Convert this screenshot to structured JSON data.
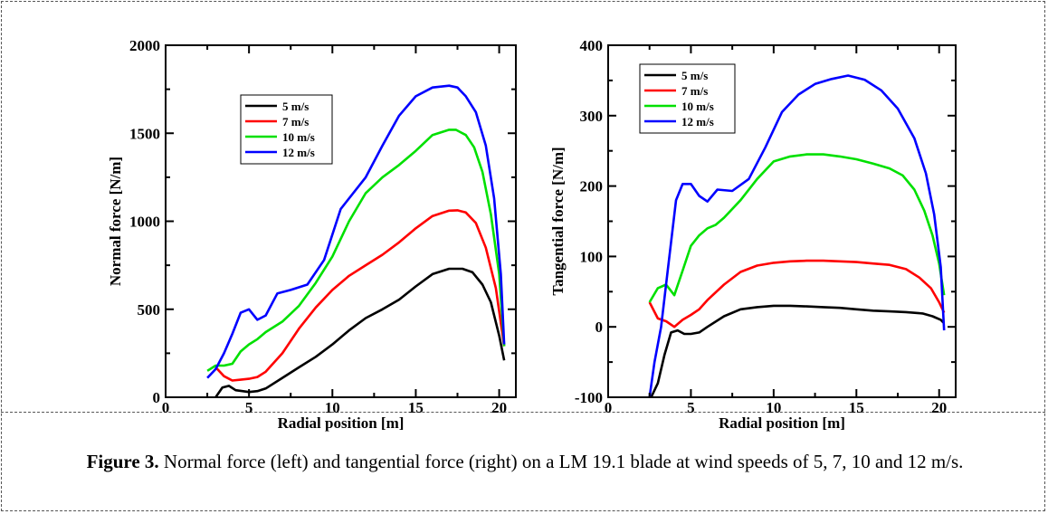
{
  "colors": {
    "s5": "#000000",
    "s7": "#ff0000",
    "s10": "#00e000",
    "s12": "#0000ff"
  },
  "caption": {
    "label": "Figure 3.",
    "text": " Normal force (left) and tangential force (right) on a LM 19.1 blade at wind speeds of 5, 7, 10 and 12 m/s."
  },
  "chart_data": [
    {
      "type": "line",
      "xlabel": "Radial position [m]",
      "ylabel": "Normal force [N/m]",
      "xlim": [
        0,
        21
      ],
      "ylim": [
        0,
        2000
      ],
      "xticks": [
        0,
        5,
        10,
        15,
        20
      ],
      "yticks": [
        0,
        500,
        1000,
        1500,
        2000
      ],
      "legend_position": "upper-left",
      "series": [
        {
          "name": "5 m/s",
          "color": "#000000",
          "points": [
            [
              3,
              0
            ],
            [
              3.4,
              55
            ],
            [
              3.8,
              65
            ],
            [
              4.2,
              40
            ],
            [
              4.6,
              35
            ],
            [
              5,
              30
            ],
            [
              5.5,
              35
            ],
            [
              6,
              50
            ],
            [
              7,
              110
            ],
            [
              8,
              170
            ],
            [
              9,
              230
            ],
            [
              10,
              300
            ],
            [
              11,
              380
            ],
            [
              12,
              450
            ],
            [
              13,
              500
            ],
            [
              14,
              555
            ],
            [
              15,
              630
            ],
            [
              16,
              700
            ],
            [
              17,
              730
            ],
            [
              17.8,
              730
            ],
            [
              18.4,
              710
            ],
            [
              19,
              640
            ],
            [
              19.5,
              540
            ],
            [
              20,
              350
            ],
            [
              20.3,
              210
            ]
          ]
        },
        {
          "name": "7 m/s",
          "color": "#ff0000",
          "points": [
            [
              3,
              170
            ],
            [
              3.5,
              120
            ],
            [
              4,
              95
            ],
            [
              4.5,
              100
            ],
            [
              5,
              105
            ],
            [
              5.5,
              115
            ],
            [
              6,
              145
            ],
            [
              7,
              250
            ],
            [
              8,
              390
            ],
            [
              9,
              510
            ],
            [
              10,
              610
            ],
            [
              11,
              690
            ],
            [
              12,
              750
            ],
            [
              13,
              810
            ],
            [
              14,
              880
            ],
            [
              15,
              960
            ],
            [
              16,
              1030
            ],
            [
              17,
              1060
            ],
            [
              17.5,
              1062
            ],
            [
              18,
              1050
            ],
            [
              18.6,
              990
            ],
            [
              19.2,
              850
            ],
            [
              19.8,
              620
            ],
            [
              20.3,
              290
            ]
          ]
        },
        {
          "name": "10 m/s",
          "color": "#00e000",
          "points": [
            [
              2.5,
              150
            ],
            [
              3,
              180
            ],
            [
              3.5,
              180
            ],
            [
              4,
              190
            ],
            [
              4.5,
              260
            ],
            [
              5,
              300
            ],
            [
              5.5,
              330
            ],
            [
              6,
              370
            ],
            [
              7,
              430
            ],
            [
              8,
              520
            ],
            [
              9,
              650
            ],
            [
              10,
              800
            ],
            [
              11,
              1000
            ],
            [
              12,
              1160
            ],
            [
              13,
              1250
            ],
            [
              14,
              1320
            ],
            [
              15,
              1400
            ],
            [
              16,
              1490
            ],
            [
              17,
              1520
            ],
            [
              17.4,
              1520
            ],
            [
              18,
              1490
            ],
            [
              18.5,
              1420
            ],
            [
              19,
              1280
            ],
            [
              19.5,
              1040
            ],
            [
              20,
              700
            ],
            [
              20.3,
              290
            ]
          ]
        },
        {
          "name": "12 m/s",
          "color": "#0000ff",
          "points": [
            [
              2.5,
              110
            ],
            [
              3,
              160
            ],
            [
              3.5,
              250
            ],
            [
              4,
              360
            ],
            [
              4.5,
              480
            ],
            [
              5,
              500
            ],
            [
              5.5,
              440
            ],
            [
              6,
              465
            ],
            [
              6.7,
              590
            ],
            [
              7.5,
              610
            ],
            [
              8.5,
              640
            ],
            [
              9.5,
              780
            ],
            [
              10.5,
              1070
            ],
            [
              12,
              1250
            ],
            [
              13,
              1430
            ],
            [
              14,
              1600
            ],
            [
              15,
              1710
            ],
            [
              16,
              1760
            ],
            [
              17,
              1770
            ],
            [
              17.5,
              1760
            ],
            [
              18,
              1710
            ],
            [
              18.6,
              1620
            ],
            [
              19.2,
              1430
            ],
            [
              19.7,
              1130
            ],
            [
              20.1,
              700
            ],
            [
              20.3,
              300
            ]
          ]
        }
      ]
    },
    {
      "type": "line",
      "xlabel": "Radial position [m]",
      "ylabel": "Tangential force [N/m]",
      "xlim": [
        0,
        21
      ],
      "ylim": [
        -100,
        400
      ],
      "xticks": [
        0,
        5,
        10,
        15,
        20
      ],
      "yticks": [
        -100,
        0,
        100,
        200,
        300,
        400
      ],
      "legend_position": "upper-left",
      "series": [
        {
          "name": "5 m/s",
          "color": "#000000",
          "points": [
            [
              2.6,
              -100
            ],
            [
              3,
              -80
            ],
            [
              3.4,
              -40
            ],
            [
              3.8,
              -8
            ],
            [
              4.2,
              -5
            ],
            [
              4.6,
              -10
            ],
            [
              5,
              -10
            ],
            [
              5.5,
              -8
            ],
            [
              6,
              0
            ],
            [
              7,
              15
            ],
            [
              8,
              25
            ],
            [
              9,
              28
            ],
            [
              10,
              30
            ],
            [
              11,
              30
            ],
            [
              12,
              29
            ],
            [
              13,
              28
            ],
            [
              14,
              27
            ],
            [
              15,
              25
            ],
            [
              16,
              23
            ],
            [
              17,
              22
            ],
            [
              18,
              21
            ],
            [
              19,
              19
            ],
            [
              19.6,
              15
            ],
            [
              20.1,
              10
            ],
            [
              20.3,
              5
            ]
          ]
        },
        {
          "name": "7 m/s",
          "color": "#ff0000",
          "points": [
            [
              2.5,
              35
            ],
            [
              3,
              12
            ],
            [
              3.5,
              8
            ],
            [
              4,
              0
            ],
            [
              4.5,
              10
            ],
            [
              5,
              17
            ],
            [
              5.5,
              25
            ],
            [
              6,
              38
            ],
            [
              7,
              60
            ],
            [
              8,
              78
            ],
            [
              9,
              87
            ],
            [
              10,
              91
            ],
            [
              11,
              93
            ],
            [
              12,
              94
            ],
            [
              13,
              94
            ],
            [
              14,
              93
            ],
            [
              15,
              92
            ],
            [
              16,
              90
            ],
            [
              17,
              88
            ],
            [
              18,
              82
            ],
            [
              18.8,
              70
            ],
            [
              19.5,
              55
            ],
            [
              20,
              35
            ],
            [
              20.3,
              20
            ]
          ]
        },
        {
          "name": "10 m/s",
          "color": "#00e000",
          "points": [
            [
              2.5,
              35
            ],
            [
              3,
              55
            ],
            [
              3.5,
              60
            ],
            [
              4,
              45
            ],
            [
              4.5,
              80
            ],
            [
              5,
              115
            ],
            [
              5.5,
              130
            ],
            [
              6,
              140
            ],
            [
              6.5,
              145
            ],
            [
              7,
              155
            ],
            [
              8,
              180
            ],
            [
              9,
              210
            ],
            [
              10,
              235
            ],
            [
              11,
              242
            ],
            [
              12,
              245
            ],
            [
              13,
              245
            ],
            [
              14,
              242
            ],
            [
              15,
              238
            ],
            [
              16,
              232
            ],
            [
              17,
              225
            ],
            [
              17.8,
              215
            ],
            [
              18.5,
              195
            ],
            [
              19.1,
              165
            ],
            [
              19.6,
              130
            ],
            [
              20,
              90
            ],
            [
              20.3,
              45
            ]
          ]
        },
        {
          "name": "12 m/s",
          "color": "#0000ff",
          "points": [
            [
              2.5,
              -100
            ],
            [
              2.8,
              -50
            ],
            [
              3.2,
              0
            ],
            [
              3.6,
              80
            ],
            [
              4.1,
              180
            ],
            [
              4.5,
              203
            ],
            [
              5,
              203
            ],
            [
              5.5,
              186
            ],
            [
              6,
              178
            ],
            [
              6.6,
              195
            ],
            [
              7.5,
              193
            ],
            [
              8.5,
              210
            ],
            [
              9.5,
              255
            ],
            [
              10.5,
              305
            ],
            [
              11.5,
              330
            ],
            [
              12.5,
              345
            ],
            [
              13.5,
              352
            ],
            [
              14.5,
              357
            ],
            [
              15.5,
              351
            ],
            [
              16.5,
              336
            ],
            [
              17.5,
              310
            ],
            [
              18.5,
              268
            ],
            [
              19.2,
              218
            ],
            [
              19.7,
              160
            ],
            [
              20.1,
              85
            ],
            [
              20.3,
              -5
            ]
          ]
        }
      ]
    }
  ]
}
